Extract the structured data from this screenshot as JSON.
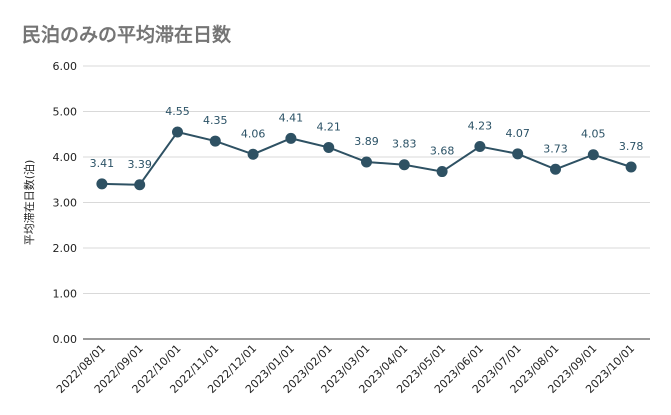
{
  "chart_data": {
    "type": "line",
    "title": "民泊のみの平均滞在日数",
    "xlabel": "",
    "ylabel": "平均滞在日数(泊)",
    "ylim": [
      0,
      6
    ],
    "yticks": [
      "0.00",
      "1.00",
      "2.00",
      "3.00",
      "4.00",
      "5.00",
      "6.00"
    ],
    "grid": true,
    "legend": "none",
    "colors": {
      "line": "#2e5163",
      "grid": "#d9d9d9",
      "axis": "#333333",
      "title": "#757575"
    },
    "categories": [
      "2022/08/01",
      "2022/09/01",
      "2022/10/01",
      "2022/11/01",
      "2022/12/01",
      "2023/01/01",
      "2023/02/01",
      "2023/03/01",
      "2023/04/01",
      "2023/05/01",
      "2023/06/01",
      "2023/07/01",
      "2023/08/01",
      "2023/09/01",
      "2023/10/01"
    ],
    "series": [
      {
        "values": [
          3.41,
          3.39,
          4.55,
          4.35,
          4.06,
          4.41,
          4.21,
          3.89,
          3.83,
          3.68,
          4.23,
          4.07,
          3.73,
          4.05,
          3.78
        ]
      }
    ]
  }
}
